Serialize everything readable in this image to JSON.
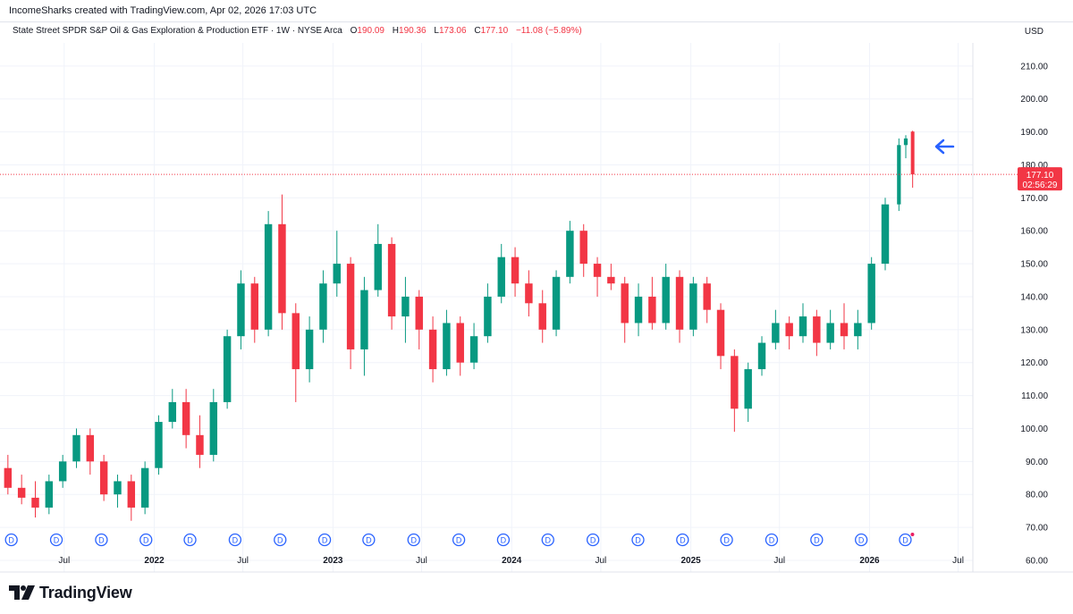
{
  "header": {
    "credit": "IncomeSharks created with TradingView.com, Apr 02, 2026 17:03 UTC",
    "instrument": "State Street SPDR S&P Oil & Gas Exploration & Production ETF · 1W · NYSE Arca",
    "open_label": "O",
    "open": "190.09",
    "high_label": "H",
    "high": "190.36",
    "low_label": "L",
    "low": "173.06",
    "close_label": "C",
    "close": "177.10",
    "change": "−11.08 (−5.89%)",
    "currency": "USD"
  },
  "price_tag": {
    "price": "177.10",
    "countdown": "02:56:29"
  },
  "brand": {
    "name": "TradingView"
  },
  "colors": {
    "up": "#089981",
    "down": "#f23645",
    "arrow": "#2962ff",
    "dividend": "#2962ff"
  },
  "dividend_marker_glyph": "D",
  "chart_data": {
    "type": "candlestick",
    "timeframe": "1W",
    "last_price": 177.1,
    "ylim": [
      57,
      217
    ],
    "y_ticks": [
      60,
      70,
      80,
      90,
      100,
      110,
      120,
      130,
      140,
      150,
      160,
      170,
      180,
      190,
      200,
      210
    ],
    "y_tick_labels": [
      "60.00",
      "70.00",
      "80.00",
      "90.00",
      "100.00",
      "110.00",
      "120.00",
      "130.00",
      "140.00",
      "150.00",
      "160.00",
      "170.00",
      "180.00",
      "190.00",
      "200.00",
      "210.00"
    ],
    "x_start": "2021-03-01",
    "x_end": "2026-07-31",
    "x_ticks": [
      {
        "date": "2021-07-01",
        "label": "Jul"
      },
      {
        "date": "2022-01-01",
        "label": "2022"
      },
      {
        "date": "2022-07-01",
        "label": "Jul"
      },
      {
        "date": "2023-01-01",
        "label": "2023"
      },
      {
        "date": "2023-07-01",
        "label": "Jul"
      },
      {
        "date": "2024-01-01",
        "label": "2024"
      },
      {
        "date": "2024-07-01",
        "label": "Jul"
      },
      {
        "date": "2025-01-01",
        "label": "2025"
      },
      {
        "date": "2025-07-01",
        "label": "Jul"
      },
      {
        "date": "2026-01-01",
        "label": "2026"
      },
      {
        "date": "2026-07-01",
        "label": "Jul"
      }
    ],
    "dividend_dates": [
      "2021-03-15",
      "2021-06-15",
      "2021-09-15",
      "2021-12-15",
      "2022-03-15",
      "2022-06-15",
      "2022-09-15",
      "2022-12-15",
      "2023-03-15",
      "2023-06-15",
      "2023-09-15",
      "2023-12-15",
      "2024-03-15",
      "2024-06-15",
      "2024-09-15",
      "2024-12-15",
      "2025-03-15",
      "2025-06-15",
      "2025-09-15",
      "2025-12-15",
      "2026-03-15"
    ],
    "series": [
      {
        "name": "weekly_ohlc",
        "points": [
          {
            "date": "2021-03-08",
            "o": 88,
            "h": 92,
            "l": 80,
            "c": 82
          },
          {
            "date": "2021-04-05",
            "o": 82,
            "h": 86,
            "l": 77,
            "c": 79
          },
          {
            "date": "2021-05-03",
            "o": 79,
            "h": 84,
            "l": 73,
            "c": 76
          },
          {
            "date": "2021-05-31",
            "o": 76,
            "h": 86,
            "l": 74,
            "c": 84
          },
          {
            "date": "2021-06-28",
            "o": 84,
            "h": 92,
            "l": 82,
            "c": 90
          },
          {
            "date": "2021-07-26",
            "o": 90,
            "h": 100,
            "l": 88,
            "c": 98
          },
          {
            "date": "2021-08-23",
            "o": 98,
            "h": 100,
            "l": 86,
            "c": 90
          },
          {
            "date": "2021-09-20",
            "o": 90,
            "h": 92,
            "l": 78,
            "c": 80
          },
          {
            "date": "2021-10-18",
            "o": 80,
            "h": 86,
            "l": 76,
            "c": 84
          },
          {
            "date": "2021-11-15",
            "o": 84,
            "h": 86,
            "l": 72,
            "c": 76
          },
          {
            "date": "2021-12-13",
            "o": 76,
            "h": 90,
            "l": 74,
            "c": 88
          },
          {
            "date": "2022-01-10",
            "o": 88,
            "h": 104,
            "l": 86,
            "c": 102
          },
          {
            "date": "2022-02-07",
            "o": 102,
            "h": 112,
            "l": 100,
            "c": 108
          },
          {
            "date": "2022-03-07",
            "o": 108,
            "h": 112,
            "l": 94,
            "c": 98
          },
          {
            "date": "2022-04-04",
            "o": 98,
            "h": 104,
            "l": 88,
            "c": 92
          },
          {
            "date": "2022-05-02",
            "o": 92,
            "h": 112,
            "l": 90,
            "c": 108
          },
          {
            "date": "2022-05-30",
            "o": 108,
            "h": 130,
            "l": 106,
            "c": 128
          },
          {
            "date": "2022-06-27",
            "o": 128,
            "h": 148,
            "l": 124,
            "c": 144
          },
          {
            "date": "2022-07-25",
            "o": 144,
            "h": 146,
            "l": 126,
            "c": 130
          },
          {
            "date": "2022-08-22",
            "o": 130,
            "h": 166,
            "l": 128,
            "c": 162
          },
          {
            "date": "2022-09-19",
            "o": 162,
            "h": 171,
            "l": 130,
            "c": 135
          },
          {
            "date": "2022-10-17",
            "o": 135,
            "h": 138,
            "l": 108,
            "c": 118
          },
          {
            "date": "2022-11-14",
            "o": 118,
            "h": 134,
            "l": 114,
            "c": 130
          },
          {
            "date": "2022-12-12",
            "o": 130,
            "h": 148,
            "l": 126,
            "c": 144
          },
          {
            "date": "2023-01-09",
            "o": 144,
            "h": 160,
            "l": 140,
            "c": 150
          },
          {
            "date": "2023-02-06",
            "o": 150,
            "h": 152,
            "l": 118,
            "c": 124
          },
          {
            "date": "2023-03-06",
            "o": 124,
            "h": 146,
            "l": 116,
            "c": 142
          },
          {
            "date": "2023-04-03",
            "o": 142,
            "h": 162,
            "l": 140,
            "c": 156
          },
          {
            "date": "2023-05-01",
            "o": 156,
            "h": 158,
            "l": 130,
            "c": 134
          },
          {
            "date": "2023-05-29",
            "o": 134,
            "h": 146,
            "l": 126,
            "c": 140
          },
          {
            "date": "2023-06-26",
            "o": 140,
            "h": 142,
            "l": 124,
            "c": 130
          },
          {
            "date": "2023-07-24",
            "o": 130,
            "h": 134,
            "l": 114,
            "c": 118
          },
          {
            "date": "2023-08-21",
            "o": 118,
            "h": 136,
            "l": 116,
            "c": 132
          },
          {
            "date": "2023-09-18",
            "o": 132,
            "h": 134,
            "l": 116,
            "c": 120
          },
          {
            "date": "2023-10-16",
            "o": 120,
            "h": 132,
            "l": 118,
            "c": 128
          },
          {
            "date": "2023-11-13",
            "o": 128,
            "h": 144,
            "l": 126,
            "c": 140
          },
          {
            "date": "2023-12-11",
            "o": 140,
            "h": 156,
            "l": 138,
            "c": 152
          },
          {
            "date": "2024-01-08",
            "o": 152,
            "h": 155,
            "l": 140,
            "c": 144
          },
          {
            "date": "2024-02-05",
            "o": 144,
            "h": 148,
            "l": 134,
            "c": 138
          },
          {
            "date": "2024-03-04",
            "o": 138,
            "h": 142,
            "l": 126,
            "c": 130
          },
          {
            "date": "2024-04-01",
            "o": 130,
            "h": 148,
            "l": 128,
            "c": 146
          },
          {
            "date": "2024-04-29",
            "o": 146,
            "h": 163,
            "l": 144,
            "c": 160
          },
          {
            "date": "2024-05-27",
            "o": 160,
            "h": 162,
            "l": 146,
            "c": 150
          },
          {
            "date": "2024-06-24",
            "o": 150,
            "h": 152,
            "l": 140,
            "c": 146
          },
          {
            "date": "2024-07-22",
            "o": 146,
            "h": 150,
            "l": 142,
            "c": 144
          },
          {
            "date": "2024-08-19",
            "o": 144,
            "h": 146,
            "l": 126,
            "c": 132
          },
          {
            "date": "2024-09-16",
            "o": 132,
            "h": 144,
            "l": 128,
            "c": 140
          },
          {
            "date": "2024-10-14",
            "o": 140,
            "h": 146,
            "l": 130,
            "c": 132
          },
          {
            "date": "2024-11-11",
            "o": 132,
            "h": 150,
            "l": 130,
            "c": 146
          },
          {
            "date": "2024-12-09",
            "o": 146,
            "h": 148,
            "l": 126,
            "c": 130
          },
          {
            "date": "2025-01-06",
            "o": 130,
            "h": 146,
            "l": 128,
            "c": 144
          },
          {
            "date": "2025-02-03",
            "o": 144,
            "h": 146,
            "l": 132,
            "c": 136
          },
          {
            "date": "2025-03-03",
            "o": 136,
            "h": 138,
            "l": 118,
            "c": 122
          },
          {
            "date": "2025-03-31",
            "o": 122,
            "h": 124,
            "l": 99,
            "c": 106
          },
          {
            "date": "2025-04-28",
            "o": 106,
            "h": 120,
            "l": 102,
            "c": 118
          },
          {
            "date": "2025-05-26",
            "o": 118,
            "h": 128,
            "l": 116,
            "c": 126
          },
          {
            "date": "2025-06-23",
            "o": 126,
            "h": 136,
            "l": 124,
            "c": 132
          },
          {
            "date": "2025-07-21",
            "o": 132,
            "h": 134,
            "l": 124,
            "c": 128
          },
          {
            "date": "2025-08-18",
            "o": 128,
            "h": 138,
            "l": 126,
            "c": 134
          },
          {
            "date": "2025-09-15",
            "o": 134,
            "h": 136,
            "l": 122,
            "c": 126
          },
          {
            "date": "2025-10-13",
            "o": 126,
            "h": 136,
            "l": 124,
            "c": 132
          },
          {
            "date": "2025-11-10",
            "o": 132,
            "h": 138,
            "l": 124,
            "c": 128
          },
          {
            "date": "2025-12-08",
            "o": 128,
            "h": 136,
            "l": 124,
            "c": 132
          },
          {
            "date": "2026-01-05",
            "o": 132,
            "h": 152,
            "l": 130,
            "c": 150
          },
          {
            "date": "2026-02-02",
            "o": 150,
            "h": 170,
            "l": 148,
            "c": 168
          },
          {
            "date": "2026-03-02",
            "o": 168,
            "h": 188,
            "l": 166,
            "c": 186
          },
          {
            "date": "2026-03-16",
            "o": 186,
            "h": 189,
            "l": 182,
            "c": 188
          },
          {
            "date": "2026-03-30",
            "o": 190.09,
            "h": 190.36,
            "l": 173.06,
            "c": 177.1
          }
        ]
      }
    ]
  }
}
